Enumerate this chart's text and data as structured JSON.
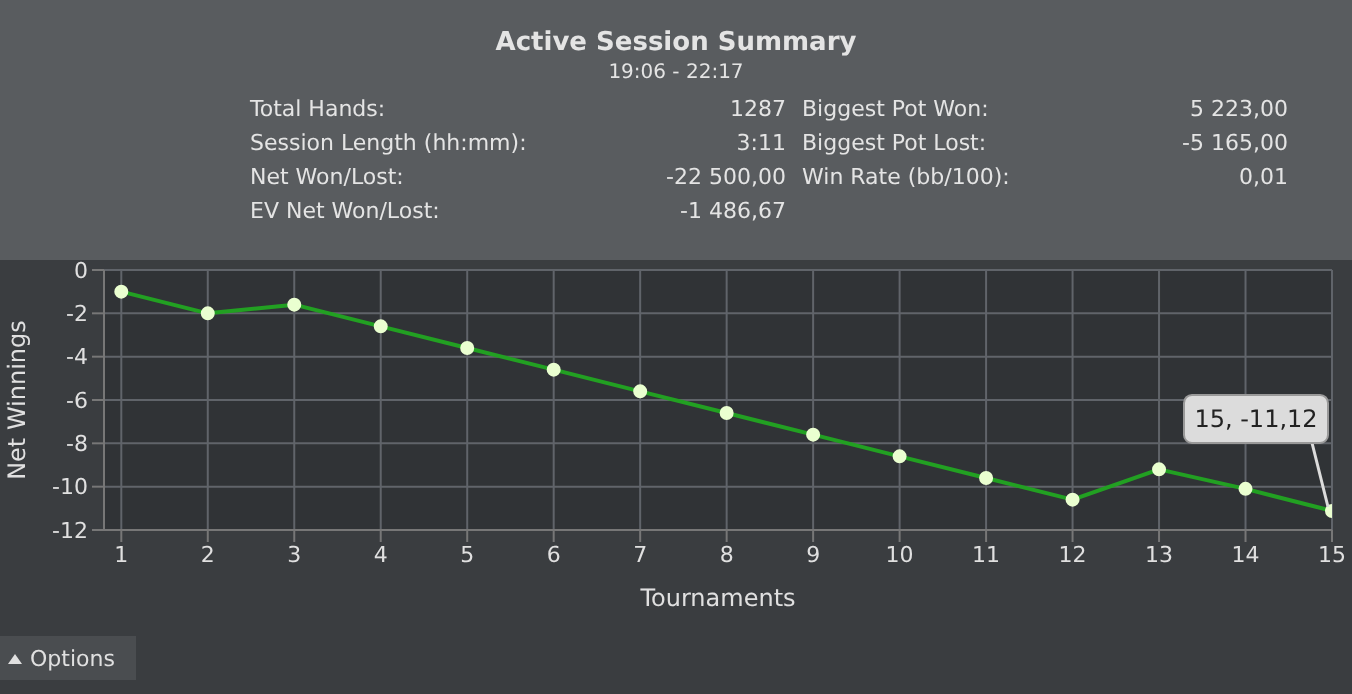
{
  "chart_data": {
    "type": "line",
    "title": "Active Session Summary",
    "subtitle": "19:06 - 22:17",
    "xlabel": "Tournaments",
    "ylabel": "Net Winnings",
    "x": [
      1,
      2,
      3,
      4,
      5,
      6,
      7,
      8,
      9,
      10,
      11,
      12,
      13,
      14,
      15
    ],
    "series": [
      {
        "color": "#22a022",
        "values": [
          -1,
          -2,
          -1.6,
          -2.6,
          -3.6,
          -4.6,
          -5.6,
          -6.6,
          -7.6,
          -8.6,
          -9.6,
          -10.6,
          -9.2,
          -10.1,
          -11.12
        ]
      }
    ],
    "xlim": [
      0.8,
      15
    ],
    "xticks": [
      1,
      2,
      3,
      4,
      5,
      6,
      7,
      8,
      9,
      10,
      11,
      12,
      13,
      14,
      15
    ],
    "ylim": [
      -12,
      0
    ],
    "yticks": [
      -12,
      -10,
      -8,
      -6,
      -4,
      -2,
      0
    ],
    "grid": true,
    "marker": "circle",
    "line_style": "solid",
    "annotations": [
      "Total Hands:",
      "1287",
      "Biggest Pot Won:",
      "5 223,00",
      "Session Length (hh:mm):",
      "3:11",
      "Biggest Pot Lost:",
      "-5 165,00",
      "Net Won/Lost:",
      "-22 500,00",
      "Win Rate (bb/100):",
      "0,01",
      "EV Net Won/Lost:",
      "-1 486,67",
      "Options",
      {
        "text": "15, -11,12",
        "x": 15,
        "y": -11.12
      }
    ]
  }
}
